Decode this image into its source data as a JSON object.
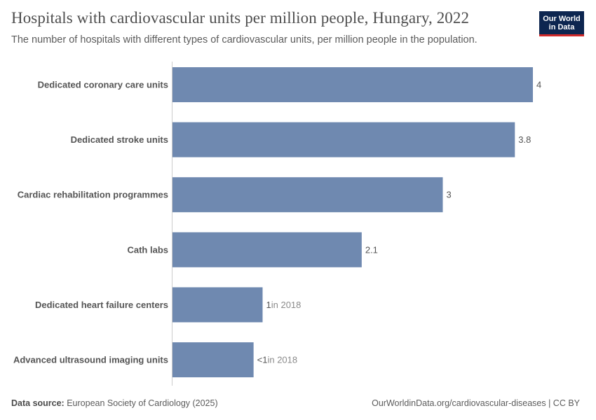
{
  "header": {
    "title": "Hospitals with cardiovascular units per million people, Hungary, 2022",
    "subtitle": "The number of hospitals with different types of cardiovascular units, per million people in the population."
  },
  "logo": {
    "line1": "Our World",
    "line2": "in Data"
  },
  "footer": {
    "source_label": "Data source:",
    "source_text": "European Society of Cardiology (2025)",
    "right_text": "OurWorldinData.org/cardiovascular-diseases | CC BY"
  },
  "colors": {
    "bar": "#6f89b0",
    "axis": "#cccccc"
  },
  "chart_data": {
    "type": "bar",
    "orientation": "horizontal",
    "title": "Hospitals with cardiovascular units per million people, Hungary, 2022",
    "subtitle": "The number of hospitals with different types of cardiovascular units, per million people in the population.",
    "categories": [
      "Dedicated coronary care units",
      "Dedicated stroke units",
      "Cardiac rehabilitation programmes",
      "Cath labs",
      "Dedicated heart failure centers",
      "Advanced ultrasound imaging units"
    ],
    "values": [
      4,
      3.8,
      3,
      2.1,
      1,
      0.9
    ],
    "value_labels": [
      "4",
      "3.8",
      "3",
      "2.1",
      "1",
      "<1"
    ],
    "value_notes": [
      "",
      "",
      "",
      "",
      "in 2018",
      "in 2018"
    ],
    "xlim": [
      0,
      4
    ],
    "grid": false
  }
}
